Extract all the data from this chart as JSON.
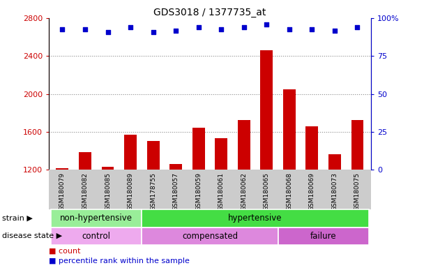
{
  "title": "GDS3018 / 1377735_at",
  "samples": [
    "GSM180079",
    "GSM180082",
    "GSM180085",
    "GSM180089",
    "GSM178755",
    "GSM180057",
    "GSM180059",
    "GSM180061",
    "GSM180062",
    "GSM180065",
    "GSM180068",
    "GSM180069",
    "GSM180073",
    "GSM180075"
  ],
  "counts": [
    1210,
    1380,
    1230,
    1570,
    1500,
    1260,
    1640,
    1530,
    1720,
    2460,
    2050,
    1660,
    1360,
    1720
  ],
  "percentile_ranks": [
    93,
    93,
    91,
    94,
    91,
    92,
    94,
    93,
    94,
    96,
    93,
    93,
    92,
    94
  ],
  "ylim_left": [
    1200,
    2800
  ],
  "ylim_right": [
    0,
    100
  ],
  "yticks_left": [
    1200,
    1600,
    2000,
    2400,
    2800
  ],
  "yticks_right": [
    0,
    25,
    50,
    75,
    100
  ],
  "bar_color": "#cc0000",
  "dot_color": "#0000cc",
  "strain_groups": [
    {
      "label": "non-hypertensive",
      "start": 0,
      "end": 4,
      "color": "#99ee99"
    },
    {
      "label": "hypertensive",
      "start": 4,
      "end": 14,
      "color": "#44dd44"
    }
  ],
  "disease_groups": [
    {
      "label": "control",
      "start": 0,
      "end": 4,
      "color": "#eeaaee"
    },
    {
      "label": "compensated",
      "start": 4,
      "end": 10,
      "color": "#dd88dd"
    },
    {
      "label": "failure",
      "start": 10,
      "end": 14,
      "color": "#cc66cc"
    }
  ],
  "dotted_grid_values": [
    1600,
    2000,
    2400
  ],
  "dotted_grid_color": "#888888",
  "axis_color_left": "#cc0000",
  "axis_color_right": "#0000cc",
  "strain_label": "strain",
  "disease_label": "disease state",
  "background_color": "#ffffff",
  "tick_area_color": "#cccccc",
  "legend_count_label": "count",
  "legend_pct_label": "percentile rank within the sample"
}
